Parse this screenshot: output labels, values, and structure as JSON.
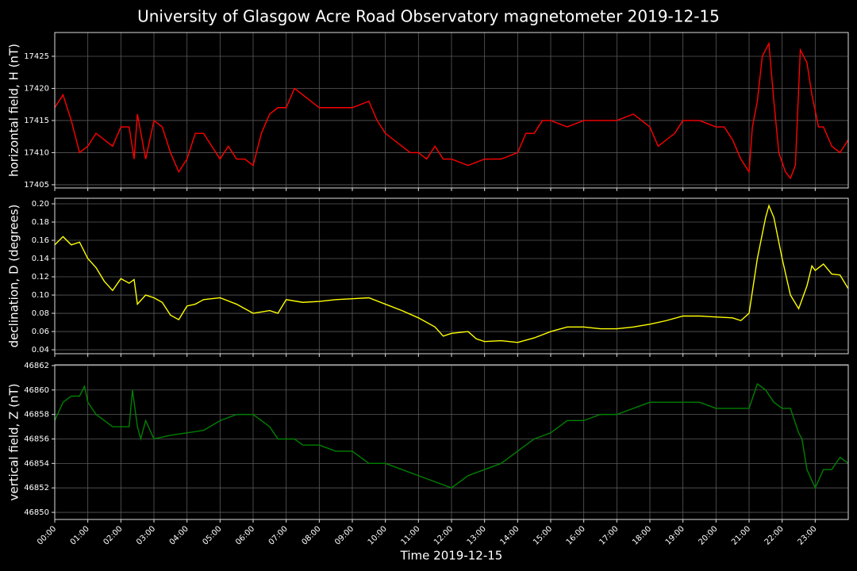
{
  "chart_data": [
    {
      "type": "line",
      "title": "University of Glasgow Acre Road Observatory magnetometer 2019-12-15",
      "ylabel": "horizontal field, H (nT)",
      "color": "#ff0000",
      "grid": true,
      "xlim": [
        0,
        24
      ],
      "ylim": [
        17404.5,
        17428.7
      ],
      "yticks": [
        17405,
        17410,
        17415,
        17420,
        17425
      ],
      "x": [
        0,
        0.25,
        0.5,
        0.75,
        1,
        1.25,
        1.5,
        1.75,
        2,
        2.25,
        2.4,
        2.5,
        2.75,
        3,
        3.25,
        3.5,
        3.75,
        4,
        4.25,
        4.5,
        4.75,
        5,
        5.25,
        5.5,
        5.75,
        6,
        6.25,
        6.5,
        6.75,
        7,
        7.25,
        7.5,
        7.75,
        8,
        8.5,
        9,
        9.5,
        9.75,
        10,
        10.25,
        10.5,
        10.75,
        11,
        11.25,
        11.5,
        11.75,
        12,
        12.5,
        13,
        13.5,
        14,
        14.25,
        14.5,
        14.75,
        15,
        15.5,
        16,
        16.5,
        17,
        17.5,
        18,
        18.25,
        18.5,
        18.75,
        19,
        19.5,
        20,
        20.25,
        20.5,
        20.75,
        21,
        21.1,
        21.25,
        21.4,
        21.6,
        21.75,
        21.9,
        22.1,
        22.25,
        22.4,
        22.55,
        22.75,
        22.9,
        23.1,
        23.25,
        23.5,
        23.75,
        24
      ],
      "values": [
        17417,
        17419,
        17415,
        17410,
        17411,
        17413,
        17412,
        17411,
        17414,
        17414,
        17409,
        17416,
        17409,
        17415,
        17414,
        17410,
        17407,
        17409,
        17413,
        17413,
        17411,
        17409,
        17411,
        17409,
        17409,
        17408,
        17413,
        17416,
        17417,
        17417,
        17420,
        17419,
        17418,
        17417,
        17417,
        17417,
        17418,
        17415,
        17413,
        17412,
        17411,
        17410,
        17410,
        17409,
        17411,
        17409,
        17409,
        17408,
        17409,
        17409,
        17410,
        17413,
        17413,
        17415,
        17415,
        17414,
        17415,
        17415,
        17415,
        17416,
        17414,
        17411,
        17412,
        17413,
        17415,
        17415,
        17414,
        17414,
        17412,
        17409,
        17407,
        17414,
        17418,
        17425,
        17427,
        17418,
        17410,
        17407,
        17406,
        17408,
        17426,
        17424,
        17419,
        17414,
        17414,
        17411,
        17410,
        17412
      ]
    },
    {
      "type": "line",
      "ylabel": "declination, D (degrees)",
      "color": "#ffff00",
      "grid": true,
      "xlim": [
        0,
        24
      ],
      "ylim": [
        0.0357,
        0.2061
      ],
      "yticks": [
        0.04,
        0.06,
        0.08,
        {
          "value": 0.1,
          "label": "0.10"
        },
        0.12,
        0.14,
        0.16,
        0.18,
        {
          "value": 0.2,
          "label": "0.20"
        }
      ],
      "x": [
        0,
        0.25,
        0.5,
        0.75,
        1,
        1.25,
        1.5,
        1.75,
        2,
        2.25,
        2.4,
        2.5,
        2.75,
        3,
        3.25,
        3.5,
        3.75,
        4,
        4.25,
        4.5,
        5,
        5.5,
        6,
        6.5,
        6.75,
        7,
        7.5,
        8,
        8.5,
        9,
        9.5,
        10,
        10.5,
        11,
        11.5,
        11.75,
        12,
        12.5,
        12.75,
        13,
        13.5,
        14,
        14.5,
        15,
        15.5,
        16,
        16.5,
        17,
        17.5,
        18,
        18.5,
        19,
        19.5,
        20,
        20.5,
        20.75,
        21,
        21.25,
        21.5,
        21.6,
        21.75,
        22,
        22.25,
        22.5,
        22.75,
        22.9,
        23,
        23.25,
        23.5,
        23.75,
        24
      ],
      "values": [
        0.155,
        0.164,
        0.155,
        0.158,
        0.14,
        0.13,
        0.115,
        0.105,
        0.118,
        0.113,
        0.117,
        0.09,
        0.1,
        0.097,
        0.092,
        0.078,
        0.073,
        0.088,
        0.09,
        0.095,
        0.097,
        0.09,
        0.08,
        0.083,
        0.08,
        0.095,
        0.092,
        0.093,
        0.095,
        0.096,
        0.097,
        0.09,
        0.083,
        0.075,
        0.065,
        0.055,
        0.058,
        0.06,
        0.052,
        0.049,
        0.05,
        0.048,
        0.053,
        0.06,
        0.065,
        0.065,
        0.063,
        0.063,
        0.065,
        0.068,
        0.072,
        0.077,
        0.077,
        0.076,
        0.075,
        0.072,
        0.08,
        0.14,
        0.185,
        0.198,
        0.185,
        0.14,
        0.1,
        0.085,
        0.11,
        0.132,
        0.127,
        0.134,
        0.123,
        0.122,
        0.107
      ]
    },
    {
      "type": "line",
      "ylabel": "vertical field, Z (nT)",
      "xlabel": "Time 2019-12-15",
      "color": "#008000",
      "grid": true,
      "xlim": [
        0,
        24
      ],
      "ylim": [
        46849.42,
        46862.06
      ],
      "yticks": [
        46850,
        46852,
        46854,
        46856,
        46858,
        46860,
        46862
      ],
      "xticks": [
        {
          "value": 0,
          "label": "00:00"
        },
        {
          "value": 1,
          "label": "01:00"
        },
        {
          "value": 2,
          "label": "02:00"
        },
        {
          "value": 3,
          "label": "03:00"
        },
        {
          "value": 4,
          "label": "04:00"
        },
        {
          "value": 5,
          "label": "05:00"
        },
        {
          "value": 6,
          "label": "06:00"
        },
        {
          "value": 7,
          "label": "07:00"
        },
        {
          "value": 8,
          "label": "08:00"
        },
        {
          "value": 9,
          "label": "09:00"
        },
        {
          "value": 10,
          "label": "10:00"
        },
        {
          "value": 11,
          "label": "11:00"
        },
        {
          "value": 12,
          "label": "12:00"
        },
        {
          "value": 13,
          "label": "13:00"
        },
        {
          "value": 14,
          "label": "14:00"
        },
        {
          "value": 15,
          "label": "15:00"
        },
        {
          "value": 16,
          "label": "16:00"
        },
        {
          "value": 17,
          "label": "17:00"
        },
        {
          "value": 18,
          "label": "18:00"
        },
        {
          "value": 19,
          "label": "19:00"
        },
        {
          "value": 20,
          "label": "20:00"
        },
        {
          "value": 21,
          "label": "21:00"
        },
        {
          "value": 22,
          "label": "22:00"
        },
        {
          "value": 23,
          "label": "23:00"
        }
      ],
      "x": [
        0,
        0.25,
        0.5,
        0.75,
        0.9,
        1,
        1.25,
        1.5,
        1.75,
        2,
        2.25,
        2.35,
        2.5,
        2.6,
        2.75,
        3,
        3.5,
        4,
        4.5,
        5,
        5.5,
        6,
        6.25,
        6.5,
        6.75,
        7,
        7.25,
        7.5,
        8,
        8.5,
        9,
        9.5,
        10,
        10.5,
        11,
        11.5,
        12,
        12.5,
        13,
        13.5,
        14,
        14.5,
        15,
        15.5,
        16,
        16.5,
        17,
        17.5,
        18,
        18.5,
        19,
        19.5,
        20,
        20.5,
        21,
        21.25,
        21.5,
        21.75,
        22,
        22.25,
        22.5,
        22.6,
        22.75,
        23,
        23.25,
        23.5,
        23.75,
        24
      ],
      "values": [
        46857.5,
        46859,
        46859.5,
        46859.5,
        46860.3,
        46859,
        46858,
        46857.5,
        46857,
        46857,
        46857,
        46860,
        46857,
        46856,
        46857.5,
        46856,
        46856.3,
        46856.5,
        46856.7,
        46857.5,
        46858,
        46858,
        46857.5,
        46857,
        46856,
        46856,
        46856,
        46855.5,
        46855.5,
        46855,
        46855,
        46854,
        46854,
        46853.5,
        46853,
        46852.5,
        46852,
        46853,
        46853.5,
        46854,
        46855,
        46856,
        46856.5,
        46857.5,
        46857.5,
        46858,
        46858,
        46858.5,
        46859,
        46859,
        46859,
        46859,
        46858.5,
        46858.5,
        46858.5,
        46860.5,
        46860,
        46859,
        46858.5,
        46858.5,
        46856.5,
        46856,
        46853.5,
        46852,
        46853.5,
        46853.5,
        46854.5,
        46854
      ]
    }
  ]
}
